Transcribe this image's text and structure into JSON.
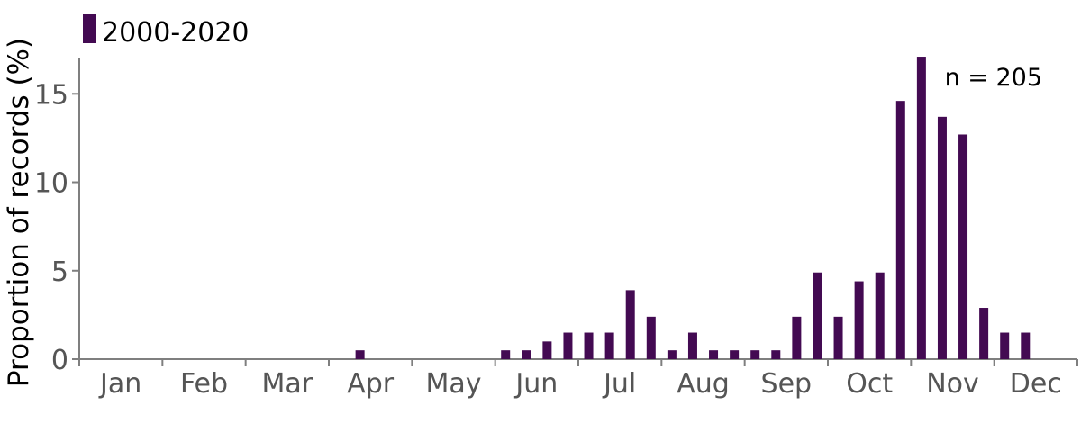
{
  "chart_data": {
    "type": "bar",
    "title": "",
    "xlabel": "",
    "ylabel": "Proportion of records (%)",
    "ylim": [
      0,
      17
    ],
    "yticks": [
      0,
      5,
      10,
      15
    ],
    "months": [
      "Jan",
      "Feb",
      "Mar",
      "Apr",
      "May",
      "Jun",
      "Jul",
      "Aug",
      "Sep",
      "Oct",
      "Nov",
      "Dec"
    ],
    "periods_per_month": 4,
    "annotation": "n = 205",
    "legend_position": "top-left",
    "grid": false,
    "series": [
      {
        "name": "2000-2020",
        "color": "#430a52",
        "values": [
          0,
          0,
          0,
          0,
          0,
          0,
          0,
          0,
          0,
          0,
          0,
          0,
          0,
          0.5,
          0,
          0,
          0,
          0,
          0,
          0,
          0.5,
          0.5,
          1,
          1.5,
          1.5,
          1.5,
          3.9,
          2.4,
          0.5,
          1.5,
          0.5,
          0.5,
          0.5,
          0.5,
          2.4,
          4.9,
          2.4,
          4.4,
          4.9,
          14.6,
          17.1,
          13.7,
          12.7,
          2.9,
          1.5,
          1.5,
          0,
          0
        ]
      }
    ]
  }
}
